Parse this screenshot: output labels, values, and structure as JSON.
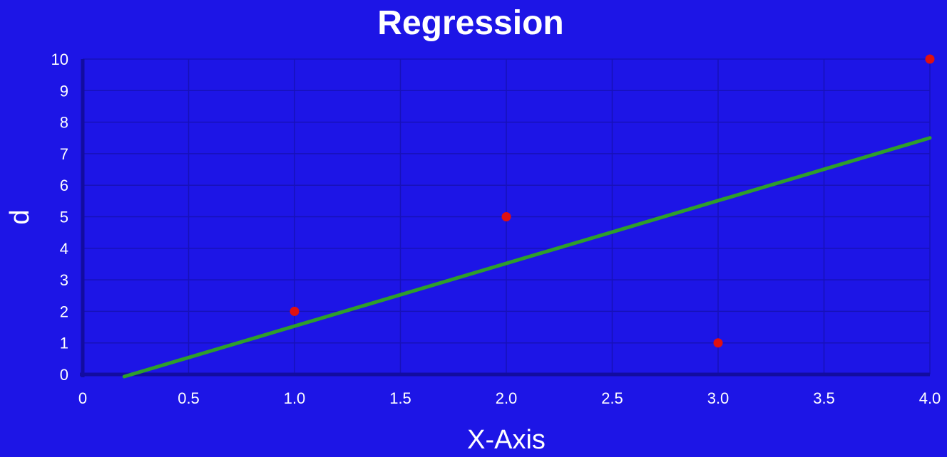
{
  "colors": {
    "background": "#1d15e6",
    "grid": "#1711b8",
    "axis": "#120ca0",
    "points": "#e01010",
    "line": "#2e9f2a",
    "text": "#ffffff"
  },
  "chart_data": {
    "type": "scatter",
    "title": "Regression",
    "xlabel": "X-Axis",
    "ylabel": "d",
    "xlim": [
      0,
      4
    ],
    "ylim": [
      0,
      10
    ],
    "x_ticks": [
      0,
      0.5,
      1,
      1.5,
      2,
      2.5,
      3,
      3.5,
      4
    ],
    "x_tick_labels": [
      "0",
      "0.5",
      "1.0",
      "1.5",
      "2.0",
      "2.5",
      "3.0",
      "3.5",
      "4.0"
    ],
    "y_ticks": [
      0,
      1,
      2,
      3,
      4,
      5,
      6,
      7,
      8,
      9,
      10
    ],
    "y_tick_labels": [
      "0",
      "1",
      "2",
      "3",
      "4",
      "5",
      "6",
      "7",
      "8",
      "9",
      "10"
    ],
    "grid": true,
    "series": [
      {
        "type": "scatter",
        "points": [
          {
            "x": 1,
            "y": 2
          },
          {
            "x": 2,
            "y": 5
          },
          {
            "x": 3,
            "y": 1
          },
          {
            "x": 4,
            "y": 10
          }
        ]
      },
      {
        "type": "line",
        "points": [
          {
            "x": 0.25,
            "y": 0
          },
          {
            "x": 4,
            "y": 7.5
          }
        ]
      }
    ]
  }
}
